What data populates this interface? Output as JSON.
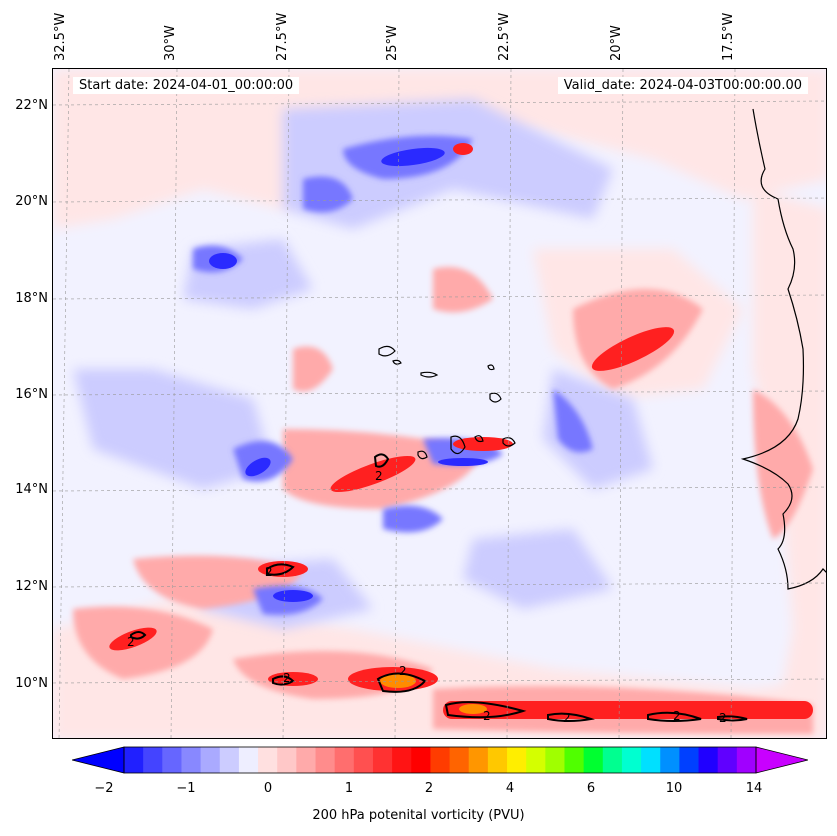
{
  "map": {
    "start_date": "Start date: 2024-04-01_00:00:00",
    "valid_date": "Valid_date: 2024-04-03T00:00:00.00",
    "lon_labels": [
      "32.5°W",
      "30°W",
      "27.5°W",
      "25°W",
      "22.5°W",
      "20°W",
      "17.5°W"
    ],
    "lat_labels": [
      "22°N",
      "20°N",
      "18°N",
      "16°N",
      "14°N",
      "12°N",
      "10°N"
    ],
    "contour_labels": [
      "2",
      "2",
      "2",
      "2",
      "2",
      "2",
      "2",
      "2",
      "2"
    ]
  },
  "colorbar": {
    "title": "200 hPa potenital vorticity (PVU)",
    "tick_labels": [
      "−2",
      "−1",
      "0",
      "1",
      "2",
      "4",
      "6",
      "10",
      "14"
    ],
    "colors": [
      "#0000ff",
      "#2020ff",
      "#4444ff",
      "#6666ff",
      "#8888ff",
      "#aaaaff",
      "#ccccff",
      "#eeeeff",
      "#ffe0e0",
      "#ffc8c8",
      "#ffaaaa",
      "#ff8c8c",
      "#ff6e6e",
      "#ff5050",
      "#ff3232",
      "#ff1414",
      "#ff0000",
      "#ff3c00",
      "#ff6400",
      "#ff9600",
      "#ffc800",
      "#ffee00",
      "#d4ff00",
      "#a0ff00",
      "#50ff00",
      "#00ff30",
      "#00ff90",
      "#00ffd0",
      "#00e0ff",
      "#0090ff",
      "#0040ff",
      "#2000ff",
      "#6000ff",
      "#a000ff",
      "#c800ff"
    ]
  }
}
